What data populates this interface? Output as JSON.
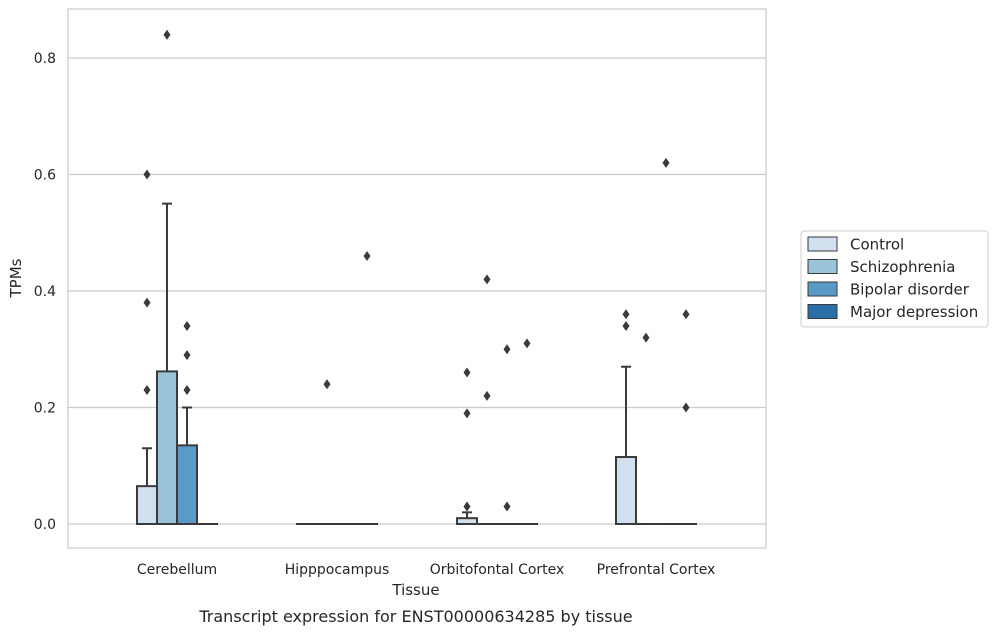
{
  "chart_data": {
    "type": "box",
    "caption": "Transcript expression for ENST00000634285 by tissue",
    "xlabel": "Tissue",
    "ylabel": "TPMs",
    "ylim": [
      -0.04,
      0.885
    ],
    "yticks": [
      0.0,
      0.2,
      0.4,
      0.6,
      0.8
    ],
    "ytick_labels": [
      "0.0",
      "0.2",
      "0.4",
      "0.6",
      "0.8"
    ],
    "grid": "y",
    "legend_position": "right",
    "categories": [
      "Cerebellum",
      "Hipppocampus",
      "Orbitofontal Cortex",
      "Prefrontal Cortex"
    ],
    "series": [
      {
        "name": "Control",
        "color": "#d0e0ef",
        "boxes": [
          {
            "q1": 0.0,
            "median": 0.0,
            "q3": 0.065,
            "whisker_low": 0.0,
            "whisker_high": 0.13,
            "outliers": [
              0.6,
              0.38,
              0.23
            ]
          },
          {
            "q1": 0.0,
            "median": 0.0,
            "q3": 0.0,
            "whisker_low": 0.0,
            "whisker_high": 0.0,
            "outliers": []
          },
          {
            "q1": 0.0,
            "median": 0.0,
            "q3": 0.01,
            "whisker_low": 0.0,
            "whisker_high": 0.02,
            "outliers": [
              0.26,
              0.19,
              0.03
            ]
          },
          {
            "q1": 0.0,
            "median": 0.0,
            "q3": 0.115,
            "whisker_low": 0.0,
            "whisker_high": 0.27,
            "outliers": [
              0.36,
              0.34
            ]
          }
        ]
      },
      {
        "name": "Schizophrenia",
        "color": "#9bc3da",
        "boxes": [
          {
            "q1": 0.0,
            "median": 0.0,
            "q3": 0.262,
            "whisker_low": 0.0,
            "whisker_high": 0.55,
            "outliers": [
              0.84
            ]
          },
          {
            "q1": 0.0,
            "median": 0.0,
            "q3": 0.0,
            "whisker_low": 0.0,
            "whisker_high": 0.0,
            "outliers": [
              0.24
            ]
          },
          {
            "q1": 0.0,
            "median": 0.0,
            "q3": 0.0,
            "whisker_low": 0.0,
            "whisker_high": 0.0,
            "outliers": [
              0.42,
              0.22
            ]
          },
          {
            "q1": 0.0,
            "median": 0.0,
            "q3": 0.0,
            "whisker_low": 0.0,
            "whisker_high": 0.0,
            "outliers": [
              0.32
            ]
          }
        ]
      },
      {
        "name": "Bipolar disorder",
        "color": "#5a9ac6",
        "boxes": [
          {
            "q1": 0.0,
            "median": 0.0,
            "q3": 0.135,
            "whisker_low": 0.0,
            "whisker_high": 0.2,
            "outliers": [
              0.34,
              0.29,
              0.23
            ]
          },
          {
            "q1": 0.0,
            "median": 0.0,
            "q3": 0.0,
            "whisker_low": 0.0,
            "whisker_high": 0.0,
            "outliers": []
          },
          {
            "q1": 0.0,
            "median": 0.0,
            "q3": 0.0,
            "whisker_low": 0.0,
            "whisker_high": 0.0,
            "outliers": [
              0.3,
              0.03
            ]
          },
          {
            "q1": 0.0,
            "median": 0.0,
            "q3": 0.0,
            "whisker_low": 0.0,
            "whisker_high": 0.0,
            "outliers": [
              0.62
            ]
          }
        ]
      },
      {
        "name": "Major depression",
        "color": "#2b6ea8",
        "boxes": [
          {
            "q1": 0.0,
            "median": 0.0,
            "q3": 0.0,
            "whisker_low": 0.0,
            "whisker_high": 0.0,
            "outliers": []
          },
          {
            "q1": 0.0,
            "median": 0.0,
            "q3": 0.0,
            "whisker_low": 0.0,
            "whisker_high": 0.0,
            "outliers": [
              0.46
            ]
          },
          {
            "q1": 0.0,
            "median": 0.0,
            "q3": 0.0,
            "whisker_low": 0.0,
            "whisker_high": 0.0,
            "outliers": [
              0.31
            ]
          },
          {
            "q1": 0.0,
            "median": 0.0,
            "q3": 0.0,
            "whisker_low": 0.0,
            "whisker_high": 0.0,
            "outliers": [
              0.36,
              0.2
            ]
          }
        ]
      }
    ]
  },
  "colors": {
    "grid": "#cccccc",
    "frame": "#cccccc",
    "box_edge": "#3a3a3a"
  }
}
